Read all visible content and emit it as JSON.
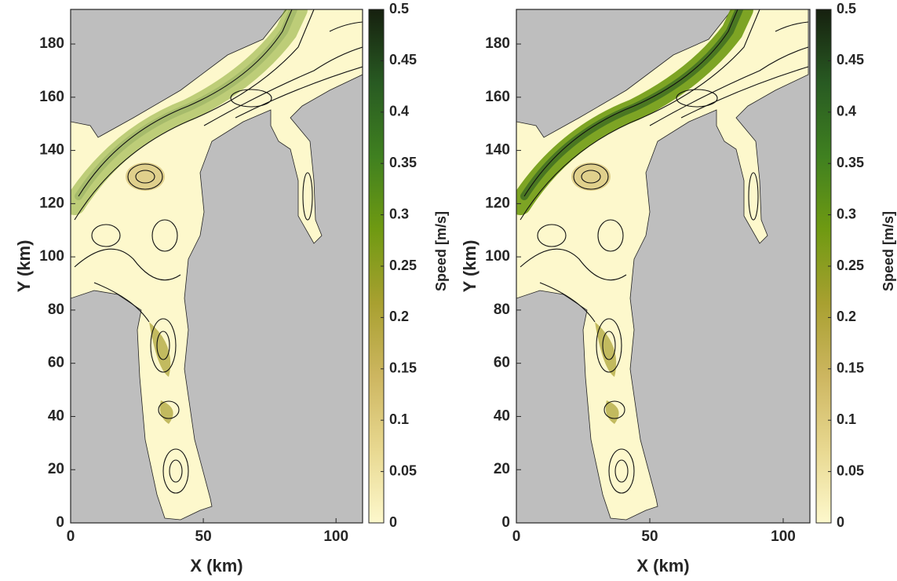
{
  "chart_data": [
    {
      "type": "map",
      "xlabel": "X (km)",
      "ylabel": "Y (km)",
      "xlim": [
        0,
        110
      ],
      "ylim": [
        0,
        193
      ],
      "xticks": [
        0,
        50,
        100
      ],
      "yticks": [
        0,
        20,
        40,
        60,
        80,
        100,
        120,
        140,
        160,
        180
      ],
      "colorbar": {
        "label": "Speed [m/s]",
        "lim": [
          0,
          0.5
        ],
        "ticks": [
          0,
          0.05,
          0.1,
          0.15,
          0.2,
          0.25,
          0.3,
          0.35,
          0.4,
          0.45,
          0.5
        ],
        "colormap": [
          "#fdf8cc",
          "#e8d890",
          "#cdb660",
          "#a8a030",
          "#6f9a12",
          "#3f8020",
          "#285a22",
          "#16200f"
        ]
      }
    },
    {
      "type": "map",
      "xlabel": "X (km)",
      "ylabel": "Y (km)",
      "xlim": [
        0,
        110
      ],
      "ylim": [
        0,
        193
      ],
      "xticks": [
        0,
        50,
        100
      ],
      "yticks": [
        0,
        20,
        40,
        60,
        80,
        100,
        120,
        140,
        160,
        180
      ],
      "colorbar": {
        "label": "Speed [m/s]",
        "lim": [
          0,
          0.5
        ],
        "ticks": [
          0,
          0.05,
          0.1,
          0.15,
          0.2,
          0.25,
          0.3,
          0.35,
          0.4,
          0.45,
          0.5
        ],
        "colormap": [
          "#fdf8cc",
          "#e8d890",
          "#cdb660",
          "#a8a030",
          "#6f9a12",
          "#3f8020",
          "#285a22",
          "#16200f"
        ]
      }
    }
  ]
}
